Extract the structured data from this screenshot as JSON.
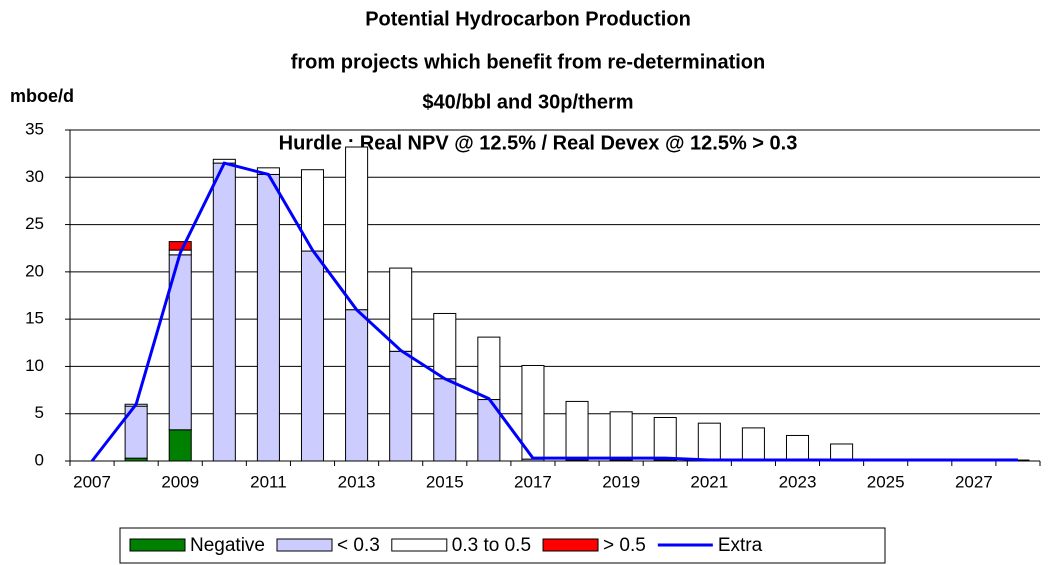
{
  "chart_data": {
    "type": "stacked_bar_line",
    "title_lines": [
      "Potential Hydrocarbon Production",
      "from projects which benefit from re-determination",
      "$40/bbl and 30p/therm"
    ],
    "subtitle": "Hurdle : Real NPV @ 12.5% / Real Devex @ 12.5% > 0.3",
    "y_label": "mboe/d",
    "categories": [
      "2007",
      null,
      "2009",
      null,
      "2011",
      null,
      "2013",
      null,
      "2015",
      null,
      "2017",
      null,
      "2019",
      null,
      "2021",
      null,
      "2023",
      null,
      "2025",
      null,
      "2027",
      null
    ],
    "ylim": [
      0,
      35
    ],
    "yticks": [
      0,
      5,
      10,
      15,
      20,
      25,
      30,
      35
    ],
    "grid": true,
    "series": [
      {
        "name": "Negative",
        "color": "#008000",
        "kind": "bar",
        "values": [
          0,
          0.3,
          3.3,
          0,
          0,
          0,
          0,
          0,
          0,
          0,
          0,
          0,
          0,
          0,
          0,
          0,
          0,
          0,
          0,
          0,
          0,
          0
        ]
      },
      {
        "name": "< 0.3",
        "color": "#ccccff",
        "kind": "bar",
        "values": [
          0,
          5.5,
          18.5,
          31.5,
          30.3,
          22.2,
          16,
          11.6,
          8.7,
          6.5,
          0.2,
          0.1,
          0.1,
          0.1,
          0,
          0,
          0,
          0,
          0,
          0,
          0,
          0
        ]
      },
      {
        "name": "0.3 to 0.5",
        "color": "#ffffff",
        "kind": "bar",
        "values": [
          0,
          0.2,
          0.5,
          0.4,
          0.7,
          8.6,
          17.2,
          8.8,
          6.9,
          6.6,
          9.9,
          6.2,
          5.1,
          4.5,
          4,
          3.5,
          2.7,
          1.8,
          0.1,
          0.1,
          0.1,
          0.1
        ]
      },
      {
        "name": "> 0.5",
        "color": "#ff0000",
        "kind": "bar",
        "values": [
          0,
          0,
          0.9,
          0,
          0,
          0,
          0,
          0,
          0,
          0,
          0,
          0,
          0,
          0,
          0,
          0,
          0,
          0,
          0,
          0,
          0,
          0
        ]
      },
      {
        "name": "Extra",
        "color": "#0000ff",
        "kind": "line",
        "values": [
          0,
          6,
          22,
          31.5,
          30.3,
          22.3,
          16,
          11.7,
          8.7,
          6.6,
          0.3,
          0.3,
          0.3,
          0.3,
          0.1,
          0.1,
          0.1,
          0.1,
          0.1,
          0.1,
          0.1,
          0.1
        ]
      }
    ]
  }
}
